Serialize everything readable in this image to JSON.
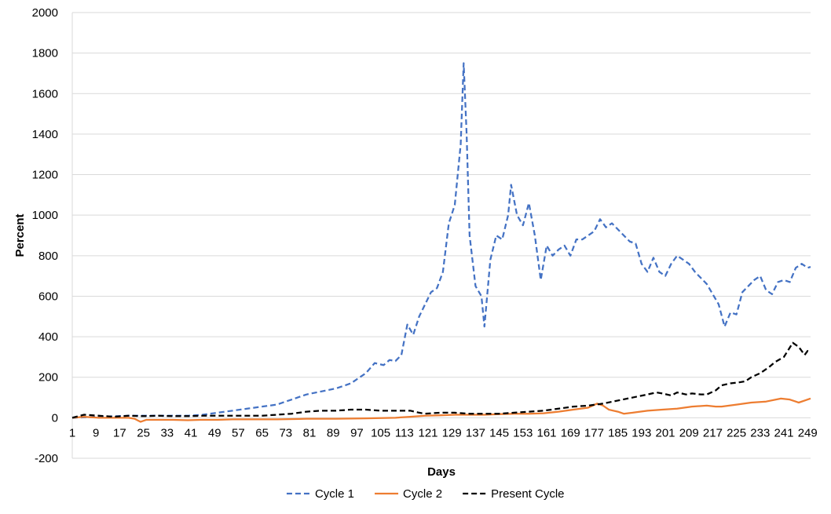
{
  "chart_data": {
    "type": "line",
    "title": "",
    "xlabel": "Days",
    "ylabel": "Percent",
    "xlim": [
      1,
      250
    ],
    "ylim": [
      -200,
      2000
    ],
    "yticks": [
      -200,
      0,
      200,
      400,
      600,
      800,
      1000,
      1200,
      1400,
      1600,
      1800,
      2000
    ],
    "xticks": [
      1,
      9,
      17,
      25,
      33,
      41,
      49,
      57,
      65,
      73,
      81,
      89,
      97,
      105,
      113,
      121,
      129,
      137,
      145,
      153,
      161,
      169,
      177,
      185,
      193,
      201,
      209,
      217,
      225,
      233,
      241,
      249
    ],
    "grid": "horizontal",
    "legend": "bottom",
    "series": [
      {
        "name": "Cycle 1",
        "color": "#4472c4",
        "style": "dashed",
        "points": [
          [
            1,
            0
          ],
          [
            10,
            5
          ],
          [
            20,
            10
          ],
          [
            30,
            10
          ],
          [
            40,
            10
          ],
          [
            45,
            15
          ],
          [
            50,
            25
          ],
          [
            55,
            35
          ],
          [
            60,
            45
          ],
          [
            65,
            55
          ],
          [
            70,
            65
          ],
          [
            75,
            90
          ],
          [
            80,
            115
          ],
          [
            85,
            130
          ],
          [
            90,
            145
          ],
          [
            95,
            170
          ],
          [
            100,
            220
          ],
          [
            103,
            270
          ],
          [
            106,
            260
          ],
          [
            108,
            285
          ],
          [
            110,
            280
          ],
          [
            112,
            310
          ],
          [
            114,
            460
          ],
          [
            116,
            410
          ],
          [
            118,
            500
          ],
          [
            120,
            560
          ],
          [
            122,
            620
          ],
          [
            124,
            640
          ],
          [
            126,
            720
          ],
          [
            128,
            960
          ],
          [
            130,
            1050
          ],
          [
            132,
            1350
          ],
          [
            133,
            1750
          ],
          [
            134,
            1400
          ],
          [
            135,
            900
          ],
          [
            137,
            650
          ],
          [
            139,
            600
          ],
          [
            140,
            450
          ],
          [
            142,
            780
          ],
          [
            144,
            900
          ],
          [
            146,
            880
          ],
          [
            148,
            1000
          ],
          [
            149,
            1150
          ],
          [
            151,
            1000
          ],
          [
            153,
            950
          ],
          [
            155,
            1060
          ],
          [
            157,
            900
          ],
          [
            159,
            680
          ],
          [
            161,
            850
          ],
          [
            163,
            800
          ],
          [
            165,
            830
          ],
          [
            167,
            850
          ],
          [
            169,
            800
          ],
          [
            171,
            880
          ],
          [
            173,
            880
          ],
          [
            175,
            900
          ],
          [
            177,
            920
          ],
          [
            179,
            980
          ],
          [
            181,
            940
          ],
          [
            183,
            960
          ],
          [
            185,
            930
          ],
          [
            187,
            900
          ],
          [
            189,
            870
          ],
          [
            191,
            860
          ],
          [
            193,
            760
          ],
          [
            195,
            720
          ],
          [
            197,
            790
          ],
          [
            199,
            720
          ],
          [
            201,
            700
          ],
          [
            203,
            760
          ],
          [
            205,
            800
          ],
          [
            207,
            780
          ],
          [
            209,
            760
          ],
          [
            211,
            720
          ],
          [
            213,
            690
          ],
          [
            215,
            660
          ],
          [
            217,
            610
          ],
          [
            219,
            560
          ],
          [
            221,
            450
          ],
          [
            223,
            520
          ],
          [
            225,
            510
          ],
          [
            227,
            620
          ],
          [
            229,
            650
          ],
          [
            231,
            680
          ],
          [
            233,
            700
          ],
          [
            235,
            630
          ],
          [
            237,
            610
          ],
          [
            239,
            670
          ],
          [
            241,
            680
          ],
          [
            243,
            670
          ],
          [
            245,
            740
          ],
          [
            247,
            760
          ],
          [
            249,
            740
          ],
          [
            250,
            745
          ]
        ]
      },
      {
        "name": "Cycle 2",
        "color": "#ed7d31",
        "style": "solid",
        "points": [
          [
            1,
            0
          ],
          [
            5,
            5
          ],
          [
            10,
            0
          ],
          [
            15,
            0
          ],
          [
            20,
            0
          ],
          [
            22,
            -5
          ],
          [
            24,
            -20
          ],
          [
            26,
            -10
          ],
          [
            30,
            -10
          ],
          [
            35,
            -10
          ],
          [
            40,
            -12
          ],
          [
            45,
            -10
          ],
          [
            50,
            -10
          ],
          [
            55,
            -8
          ],
          [
            60,
            -8
          ],
          [
            65,
            -8
          ],
          [
            70,
            -8
          ],
          [
            80,
            -5
          ],
          [
            90,
            -5
          ],
          [
            100,
            -3
          ],
          [
            110,
            0
          ],
          [
            115,
            5
          ],
          [
            120,
            10
          ],
          [
            125,
            12
          ],
          [
            130,
            15
          ],
          [
            135,
            15
          ],
          [
            140,
            15
          ],
          [
            145,
            18
          ],
          [
            150,
            20
          ],
          [
            155,
            20
          ],
          [
            160,
            22
          ],
          [
            165,
            30
          ],
          [
            170,
            40
          ],
          [
            175,
            50
          ],
          [
            178,
            70
          ],
          [
            180,
            60
          ],
          [
            182,
            40
          ],
          [
            185,
            30
          ],
          [
            187,
            20
          ],
          [
            190,
            25
          ],
          [
            195,
            35
          ],
          [
            200,
            40
          ],
          [
            205,
            45
          ],
          [
            210,
            55
          ],
          [
            215,
            60
          ],
          [
            218,
            55
          ],
          [
            220,
            55
          ],
          [
            225,
            65
          ],
          [
            230,
            75
          ],
          [
            235,
            80
          ],
          [
            240,
            95
          ],
          [
            243,
            90
          ],
          [
            245,
            80
          ],
          [
            246,
            75
          ],
          [
            248,
            85
          ],
          [
            250,
            95
          ]
        ]
      },
      {
        "name": "Present Cycle",
        "color": "#000000",
        "style": "dashed",
        "points": [
          [
            1,
            0
          ],
          [
            5,
            15
          ],
          [
            10,
            10
          ],
          [
            15,
            5
          ],
          [
            20,
            10
          ],
          [
            25,
            8
          ],
          [
            30,
            10
          ],
          [
            35,
            8
          ],
          [
            40,
            8
          ],
          [
            45,
            10
          ],
          [
            50,
            10
          ],
          [
            55,
            10
          ],
          [
            60,
            10
          ],
          [
            65,
            10
          ],
          [
            70,
            15
          ],
          [
            75,
            20
          ],
          [
            80,
            30
          ],
          [
            85,
            35
          ],
          [
            90,
            35
          ],
          [
            95,
            40
          ],
          [
            100,
            40
          ],
          [
            105,
            35
          ],
          [
            110,
            35
          ],
          [
            115,
            35
          ],
          [
            118,
            25
          ],
          [
            120,
            20
          ],
          [
            125,
            25
          ],
          [
            130,
            25
          ],
          [
            135,
            20
          ],
          [
            140,
            20
          ],
          [
            145,
            20
          ],
          [
            150,
            25
          ],
          [
            155,
            30
          ],
          [
            160,
            35
          ],
          [
            165,
            45
          ],
          [
            170,
            55
          ],
          [
            175,
            60
          ],
          [
            180,
            70
          ],
          [
            185,
            85
          ],
          [
            190,
            100
          ],
          [
            195,
            115
          ],
          [
            198,
            125
          ],
          [
            200,
            120
          ],
          [
            203,
            110
          ],
          [
            205,
            125
          ],
          [
            208,
            115
          ],
          [
            210,
            120
          ],
          [
            213,
            115
          ],
          [
            215,
            115
          ],
          [
            218,
            135
          ],
          [
            220,
            160
          ],
          [
            223,
            170
          ],
          [
            226,
            175
          ],
          [
            228,
            180
          ],
          [
            230,
            200
          ],
          [
            233,
            220
          ],
          [
            236,
            250
          ],
          [
            238,
            275
          ],
          [
            241,
            300
          ],
          [
            244,
            370
          ],
          [
            246,
            350
          ],
          [
            248,
            310
          ],
          [
            249,
            330
          ],
          [
            250,
            320
          ]
        ]
      }
    ]
  }
}
